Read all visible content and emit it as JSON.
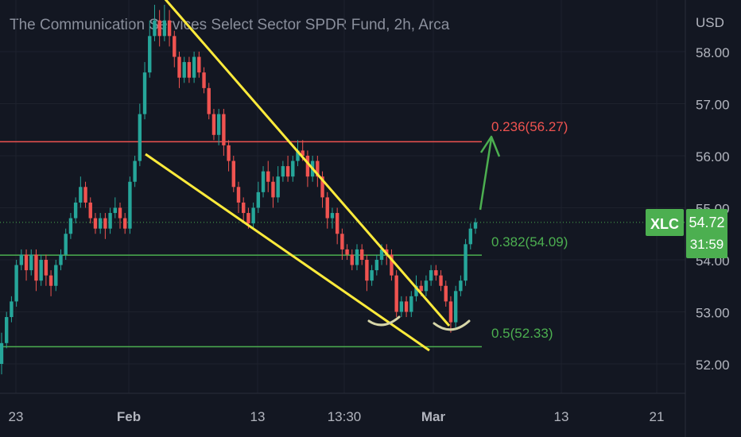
{
  "chart_data": {
    "type": "candlestick",
    "title": "The Communication Services Select Sector SPDR Fund, 2h, Arca",
    "currency_label": "USD",
    "y_ticks": [
      "58.00",
      "57.00",
      "56.00",
      "55.00",
      "54.00",
      "53.00",
      "52.00"
    ],
    "ylim": [
      51.8,
      58.9
    ],
    "x_ticks": [
      "23",
      "Feb",
      "13",
      "13:30",
      "Mar",
      "13",
      "21"
    ],
    "grid": true,
    "last_price": {
      "symbol": "XLC",
      "price": "54.72",
      "countdown": "31:59",
      "value": 54.72
    },
    "fib_levels": [
      {
        "label": "0.236(56.27)",
        "value": 56.27,
        "color": "#ef5350"
      },
      {
        "label": "0.382(54.09)",
        "value": 54.09,
        "color": "#4caf50"
      },
      {
        "label": "0.5(52.33)",
        "value": 52.33,
        "color": "#4caf50"
      }
    ],
    "candles": [
      [
        52.0,
        52.4,
        52.6,
        51.8
      ],
      [
        52.4,
        52.9,
        53.0,
        52.3
      ],
      [
        52.9,
        53.2,
        53.3,
        52.8
      ],
      [
        53.2,
        53.9,
        54.0,
        53.1
      ],
      [
        53.9,
        54.1,
        54.2,
        53.8
      ],
      [
        54.1,
        53.8,
        54.2,
        53.6
      ],
      [
        53.8,
        54.1,
        54.2,
        53.7
      ],
      [
        54.1,
        53.6,
        54.2,
        53.4
      ],
      [
        53.6,
        54.0,
        54.1,
        53.5
      ],
      [
        54.0,
        53.7,
        54.1,
        53.5
      ],
      [
        53.7,
        53.5,
        53.8,
        53.3
      ],
      [
        53.5,
        53.9,
        54.0,
        53.4
      ],
      [
        53.9,
        54.1,
        54.2,
        53.8
      ],
      [
        54.1,
        54.5,
        54.6,
        54.0
      ],
      [
        54.5,
        54.8,
        54.9,
        54.4
      ],
      [
        54.8,
        55.1,
        55.2,
        54.7
      ],
      [
        55.1,
        55.4,
        55.6,
        55.0
      ],
      [
        55.4,
        55.1,
        55.5,
        55.0
      ],
      [
        55.1,
        54.8,
        55.2,
        54.7
      ],
      [
        54.8,
        54.6,
        54.9,
        54.5
      ],
      [
        54.6,
        54.8,
        54.9,
        54.5
      ],
      [
        54.8,
        54.6,
        54.9,
        54.4
      ],
      [
        54.6,
        54.9,
        55.0,
        54.5
      ],
      [
        54.9,
        55.0,
        55.2,
        54.8
      ],
      [
        55.0,
        54.8,
        55.1,
        54.6
      ],
      [
        54.8,
        54.6,
        54.9,
        54.5
      ],
      [
        54.6,
        55.5,
        55.6,
        54.5
      ],
      [
        55.5,
        55.9,
        56.0,
        55.4
      ],
      [
        55.9,
        56.8,
        57.0,
        55.8
      ],
      [
        56.8,
        57.6,
        57.8,
        56.7
      ],
      [
        57.6,
        58.3,
        58.6,
        57.5
      ],
      [
        58.3,
        58.6,
        58.9,
        58.2
      ],
      [
        58.6,
        58.3,
        58.8,
        58.1
      ],
      [
        58.3,
        58.6,
        58.9,
        58.2
      ],
      [
        58.6,
        58.3,
        58.8,
        58.1
      ],
      [
        58.3,
        57.9,
        58.4,
        57.7
      ],
      [
        57.9,
        57.5,
        58.0,
        57.3
      ],
      [
        57.5,
        57.8,
        57.9,
        57.4
      ],
      [
        57.8,
        57.5,
        57.9,
        57.4
      ],
      [
        57.5,
        57.9,
        58.0,
        57.4
      ],
      [
        57.9,
        57.6,
        58.0,
        57.5
      ],
      [
        57.6,
        57.3,
        57.7,
        57.2
      ],
      [
        57.3,
        56.8,
        57.4,
        56.7
      ],
      [
        56.8,
        56.4,
        56.9,
        56.3
      ],
      [
        56.4,
        56.8,
        56.9,
        56.2
      ],
      [
        56.8,
        56.2,
        56.9,
        56.0
      ],
      [
        56.2,
        55.9,
        56.3,
        55.7
      ],
      [
        55.9,
        55.4,
        56.0,
        55.3
      ],
      [
        55.4,
        55.1,
        55.5,
        54.9
      ],
      [
        55.1,
        54.9,
        55.2,
        54.7
      ],
      [
        54.9,
        54.7,
        55.0,
        54.6
      ],
      [
        54.7,
        55.0,
        55.1,
        54.6
      ],
      [
        55.0,
        55.3,
        55.5,
        54.9
      ],
      [
        55.3,
        55.7,
        55.8,
        55.2
      ],
      [
        55.7,
        55.5,
        55.9,
        55.3
      ],
      [
        55.5,
        55.2,
        55.6,
        55.0
      ],
      [
        55.2,
        55.6,
        55.8,
        55.1
      ],
      [
        55.6,
        55.8,
        55.9,
        55.5
      ],
      [
        55.8,
        55.6,
        56.0,
        55.5
      ],
      [
        55.6,
        55.9,
        56.0,
        55.5
      ],
      [
        55.9,
        56.1,
        56.3,
        55.8
      ],
      [
        56.1,
        56.0,
        56.3,
        55.9
      ],
      [
        56.0,
        55.6,
        56.1,
        55.4
      ],
      [
        55.6,
        55.9,
        56.0,
        55.5
      ],
      [
        55.9,
        55.6,
        56.0,
        55.4
      ],
      [
        55.6,
        55.2,
        55.7,
        55.0
      ],
      [
        55.2,
        54.8,
        55.3,
        54.6
      ],
      [
        54.8,
        54.9,
        55.0,
        54.6
      ],
      [
        54.9,
        54.5,
        55.0,
        54.3
      ],
      [
        54.5,
        54.2,
        54.6,
        54.0
      ],
      [
        54.2,
        54.1,
        54.3,
        54.0
      ],
      [
        54.1,
        53.9,
        54.2,
        53.8
      ],
      [
        53.9,
        54.2,
        54.3,
        53.8
      ],
      [
        54.2,
        54.0,
        54.3,
        53.9
      ],
      [
        54.0,
        53.6,
        54.1,
        53.4
      ],
      [
        53.6,
        53.8,
        53.9,
        53.5
      ],
      [
        53.8,
        54.0,
        54.1,
        53.7
      ],
      [
        54.0,
        54.2,
        54.3,
        53.9
      ],
      [
        54.2,
        54.1,
        54.3,
        53.9
      ],
      [
        54.1,
        53.7,
        54.2,
        53.6
      ],
      [
        53.7,
        53.0,
        53.8,
        52.9
      ],
      [
        53.0,
        53.2,
        53.3,
        52.9
      ],
      [
        53.2,
        53.0,
        53.3,
        52.9
      ],
      [
        53.0,
        53.3,
        53.4,
        52.9
      ],
      [
        53.3,
        53.5,
        53.7,
        53.2
      ],
      [
        53.5,
        53.4,
        53.6,
        53.3
      ],
      [
        53.4,
        53.6,
        53.7,
        53.3
      ],
      [
        53.6,
        53.8,
        53.9,
        53.5
      ],
      [
        53.8,
        53.7,
        53.9,
        53.6
      ],
      [
        53.7,
        53.5,
        53.8,
        53.4
      ],
      [
        53.5,
        53.2,
        53.6,
        53.1
      ],
      [
        53.2,
        52.8,
        53.3,
        52.6
      ],
      [
        52.8,
        53.4,
        53.5,
        52.7
      ],
      [
        53.4,
        53.6,
        53.7,
        53.3
      ],
      [
        53.6,
        54.3,
        54.4,
        53.5
      ],
      [
        54.3,
        54.6,
        54.7,
        54.2
      ],
      [
        54.6,
        54.72,
        54.8,
        54.5
      ]
    ]
  }
}
